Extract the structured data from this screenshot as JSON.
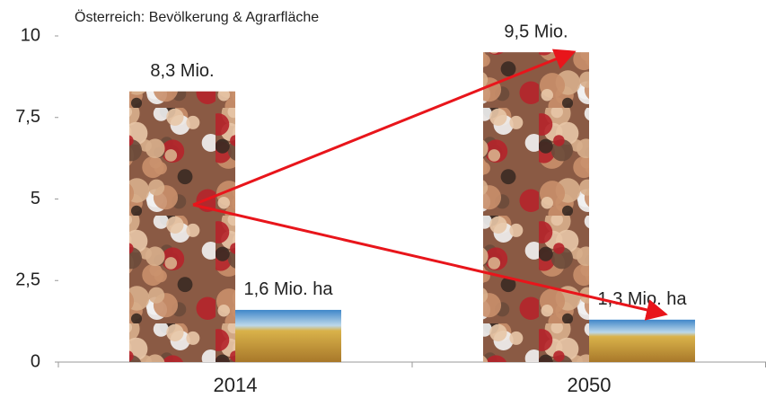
{
  "chart_data": {
    "type": "bar",
    "title": "Österreich: Bevölkerung  & Agrarfläche",
    "categories": [
      "2014",
      "2050"
    ],
    "series": [
      {
        "color": "#8a5a44",
        "values": [
          8.3,
          9.5
        ],
        "value_labels": [
          "8,3 Mio.",
          "9,5 Mio."
        ]
      },
      {
        "color": "#d9b24a",
        "values": [
          1.6,
          1.3
        ],
        "value_labels": [
          "1,6 Mio. ha",
          "1,3 Mio. ha"
        ]
      }
    ],
    "ylim": [
      0,
      10
    ],
    "yticks": [
      0,
      {
        "value": 2.5,
        "label": "2,5"
      },
      5,
      {
        "value": 7.5,
        "label": "7,5"
      },
      10
    ],
    "grid": false
  }
}
